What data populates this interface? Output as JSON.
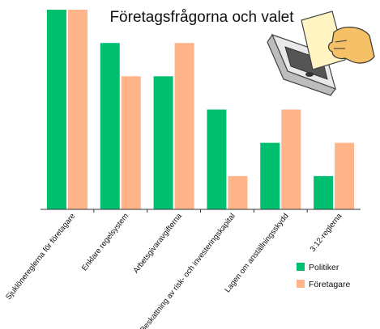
{
  "chart_data": {
    "type": "bar",
    "title": "Företagsfrågorna och valet",
    "xlabel": "",
    "ylabel": "",
    "categories": [
      "Sjuklönereglerna för företagare",
      "Enklare regelsystem",
      "Arbetsgivaravgifterna",
      "Beskattning av risk- och investeringskapital",
      "Lagen om anställningsskydd",
      "3:12-reglerna"
    ],
    "series": [
      {
        "name": "Politiker",
        "values": [
          6,
          5,
          4,
          3,
          2,
          1
        ]
      },
      {
        "name": "Företagare",
        "values": [
          6,
          4,
          5,
          1,
          3,
          2
        ]
      }
    ],
    "ylim": [
      0,
      6
    ],
    "grid": false,
    "legend": "bottom-right",
    "colors": {
      "Politiker": "#00c070",
      "Företagare": "#ffb48a"
    }
  },
  "illustration": {
    "icon": "ballot-box-icon"
  }
}
